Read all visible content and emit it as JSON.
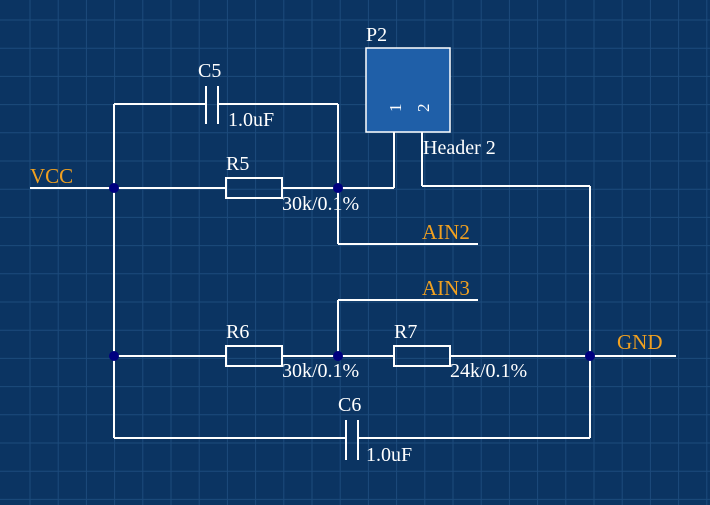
{
  "schematic": {
    "components": {
      "C5": {
        "designator": "C5",
        "value": "1.0uF"
      },
      "C6": {
        "designator": "C6",
        "value": "1.0uF"
      },
      "R5": {
        "designator": "R5",
        "value": "30k/0.1%"
      },
      "R6": {
        "designator": "R6",
        "value": "30k/0.1%"
      },
      "R7": {
        "designator": "R7",
        "value": "24k/0.1%"
      },
      "P2": {
        "designator": "P2",
        "comment": "Header 2",
        "pin1": "1",
        "pin2": "2"
      }
    },
    "nets": {
      "vcc": "VCC",
      "gnd": "GND",
      "ain2": "AIN2",
      "ain3": "AIN3"
    },
    "colors": {
      "background": "#0b3462",
      "grid": "#1d4b7c",
      "wire": "#ffffff",
      "net_label": "#f0a020",
      "junction": "#000080",
      "header_fill": "#1f5fa8"
    }
  }
}
